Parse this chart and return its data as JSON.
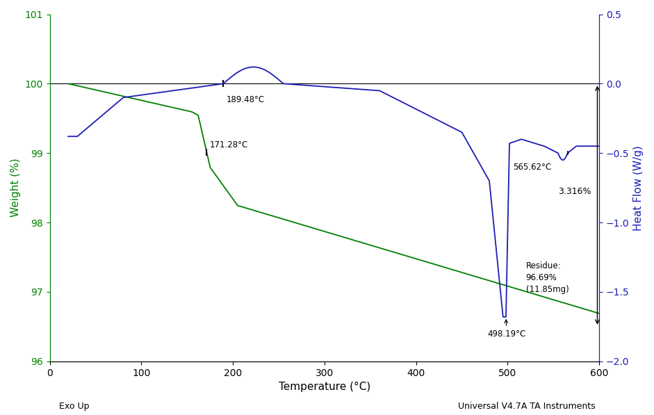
{
  "title": "",
  "xlabel": "Temperature (°C)",
  "ylabel_left": "Weight (%)",
  "ylabel_right": "Heat Flow (W/g)",
  "xlim": [
    0,
    600
  ],
  "ylim_left": [
    96,
    101
  ],
  "ylim_right": [
    -2.0,
    0.5
  ],
  "xticks": [
    0,
    100,
    200,
    300,
    400,
    500,
    600
  ],
  "yticks_left": [
    96,
    97,
    98,
    99,
    100,
    101
  ],
  "yticks_right": [
    -2.0,
    -1.5,
    -1.0,
    -0.5,
    0.0,
    0.5
  ],
  "left_color": "#008000",
  "right_color": "#1C1CB4",
  "annotation_189_label": "189.48°C",
  "annotation_171_label": "171.28°C",
  "annotation_498_label": "498.19°C",
  "annotation_565_label": "565.62°C",
  "annotation_3316_label": "3.316%",
  "annotation_residue_label": "Residue:\n96.69%\n(11.85mg)",
  "footer_left": "Exo Up",
  "footer_right": "Universal V4.7A TA Instruments",
  "bg_color": "#FFFFFF",
  "axis_color": "#000000"
}
